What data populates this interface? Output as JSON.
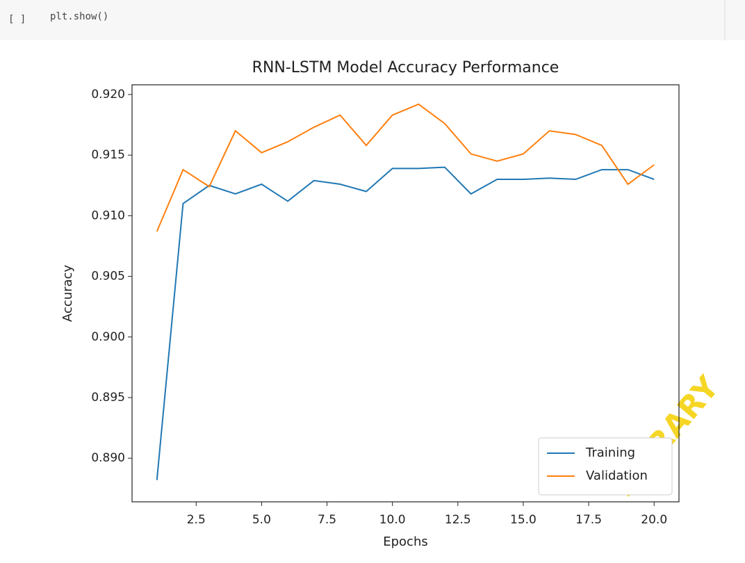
{
  "cell": {
    "prompt": "[ ]",
    "code": "plt.show()"
  },
  "watermark": "LIBRARY",
  "chart_data": {
    "type": "line",
    "title": "RNN-LSTM Model Accuracy Performance",
    "x_label": "Epochs",
    "y_label": "Accuracy",
    "x": [
      1,
      2,
      3,
      4,
      5,
      6,
      7,
      8,
      9,
      10,
      11,
      12,
      13,
      14,
      15,
      16,
      17,
      18,
      19,
      20
    ],
    "series": [
      {
        "name": "Training",
        "color": "#1f77b4",
        "values": [
          0.8882,
          0.911,
          0.9125,
          0.9118,
          0.9126,
          0.9112,
          0.9129,
          0.9126,
          0.912,
          0.9139,
          0.9139,
          0.914,
          0.9118,
          0.913,
          0.913,
          0.9131,
          0.913,
          0.9138,
          0.9138,
          0.913
        ]
      },
      {
        "name": "Validation",
        "color": "#ff7f0e",
        "values": [
          0.9087,
          0.9138,
          0.9124,
          0.917,
          0.9152,
          0.9161,
          0.9173,
          0.9183,
          0.9158,
          0.9183,
          0.9192,
          0.9176,
          0.9151,
          0.9145,
          0.9151,
          0.917,
          0.9167,
          0.9158,
          0.9126,
          0.9142
        ]
      }
    ],
    "xlim": [
      0.05,
      20.95
    ],
    "xticks": [
      2.5,
      {
        "value": 5,
        "label": "5.0"
      },
      7.5,
      {
        "value": 10,
        "label": "10.0"
      },
      12.5,
      {
        "value": 15,
        "label": "15.0"
      },
      17.5,
      {
        "value": 20,
        "label": "20.0"
      }
    ],
    "ylim": [
      0.8864,
      0.9208
    ],
    "yticks": [
      {
        "value": 0.89,
        "label": "0.890"
      },
      {
        "value": 0.895,
        "label": "0.895"
      },
      {
        "value": 0.9,
        "label": "0.900"
      },
      {
        "value": 0.905,
        "label": "0.905"
      },
      {
        "value": 0.91,
        "label": "0.910"
      },
      {
        "value": 0.915,
        "label": "0.915"
      },
      {
        "value": 0.92,
        "label": "0.920"
      }
    ],
    "legend": "lower right",
    "grid": false
  }
}
